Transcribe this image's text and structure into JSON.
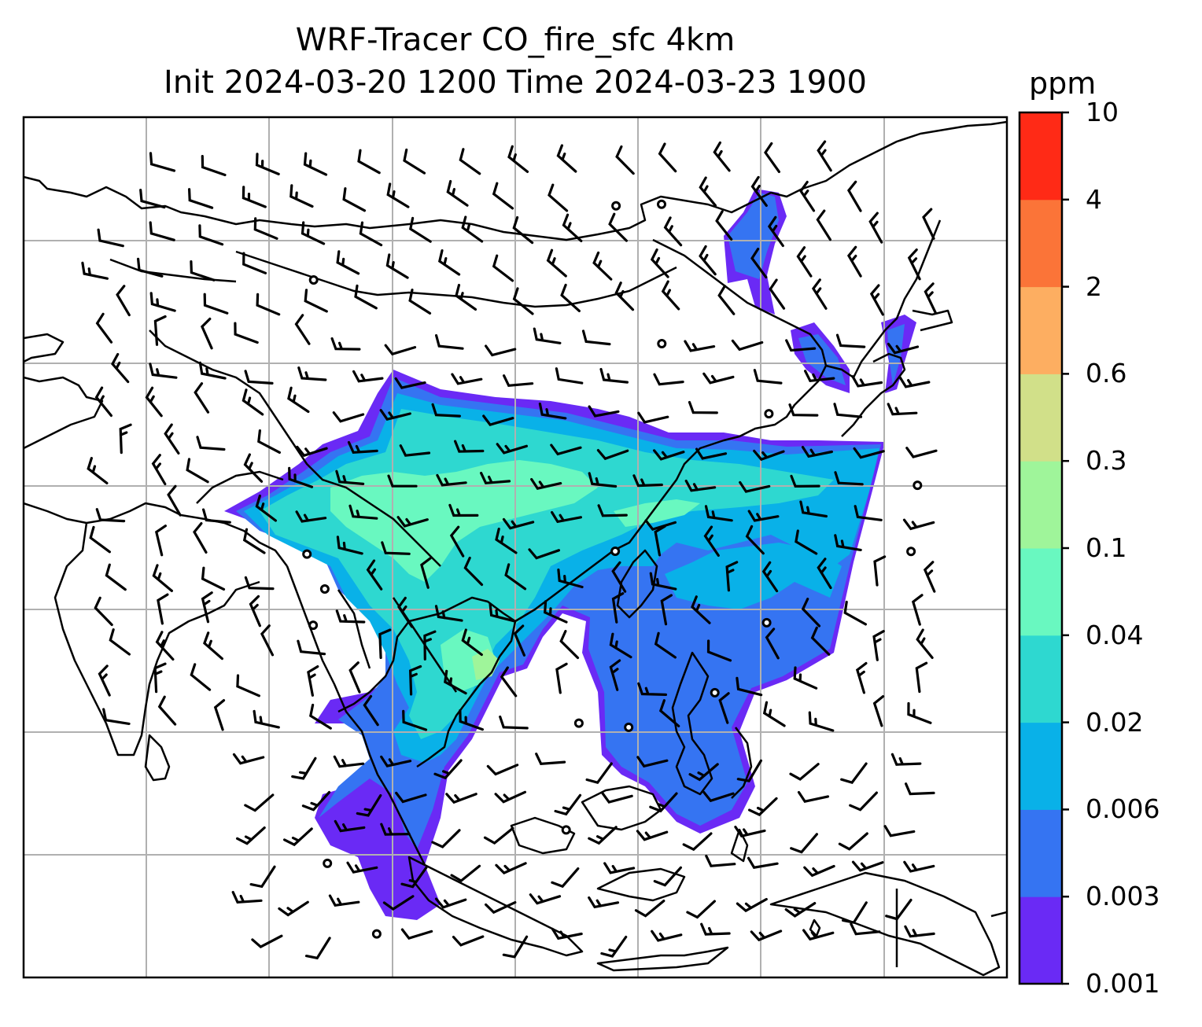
{
  "title": {
    "line1": "WRF-Tracer CO_fire_sfc 4km",
    "line2": "Init 2024-03-20 1200 Time 2024-03-23 1900"
  },
  "colorbar": {
    "unit": "ppm",
    "levels": [
      "0.001",
      "0.003",
      "0.006",
      "0.02",
      "0.04",
      "0.1",
      "0.3",
      "0.6",
      "2",
      "4",
      "10"
    ],
    "colors": [
      "#6a2af5",
      "#3574f2",
      "#09b1e8",
      "#2ed8d0",
      "#69f8c0",
      "#9ff59a",
      "#d1e089",
      "#fdae61",
      "#fb7438",
      "#ff2a16"
    ]
  },
  "map": {
    "background": "#ffffff",
    "gridline_color": "#b0b0b0",
    "coastline_color": "#000000",
    "layers": [
      "coastlines",
      "country-borders",
      "gridlines",
      "co-concentration-fill",
      "wind-barbs",
      "calm-circles"
    ]
  }
}
